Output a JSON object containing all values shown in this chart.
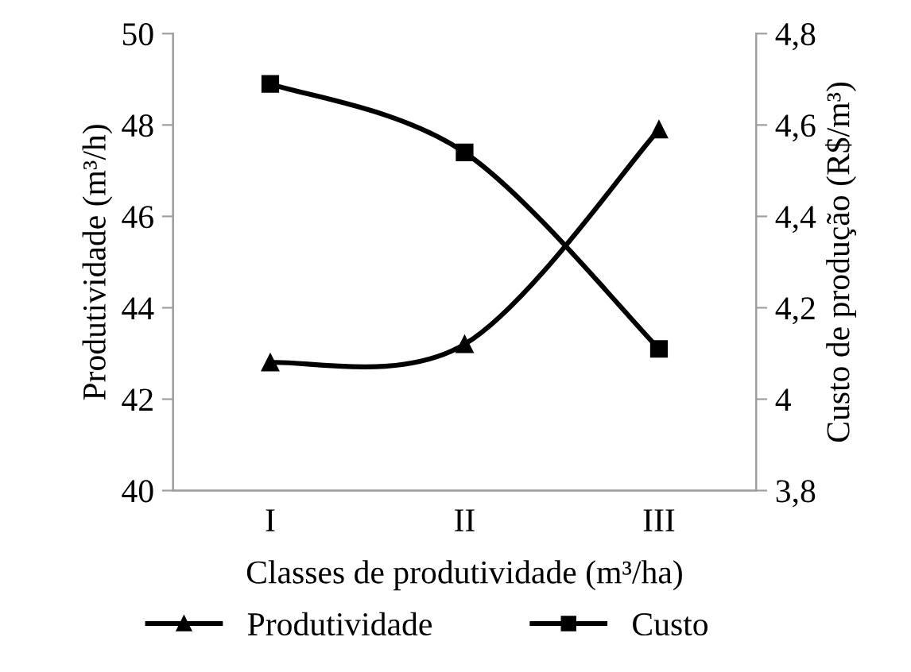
{
  "chart_data": {
    "type": "line",
    "xlabel": "Classes de produtividade (m³/ha)",
    "ylabel": "Produtividade (m³/h)",
    "y2label": "Custo de produção (R$/m³)",
    "categories": [
      "I",
      "II",
      "III"
    ],
    "series": [
      {
        "name": "Produtividade",
        "color": "#000000",
        "values": [
          42.8,
          43.2,
          47.9
        ],
        "marker": "triangle"
      },
      {
        "name": "Custo",
        "color": "#000000",
        "values": [
          4.69,
          4.54,
          4.11
        ],
        "marker": "square",
        "axis": "y2"
      }
    ],
    "ylim": [
      40,
      50
    ],
    "yticks": [
      40,
      42,
      44,
      46,
      48,
      50
    ],
    "y2lim": [
      3.8,
      4.8
    ],
    "y2ticks": [
      {
        "value": 3.8,
        "label": "3,8"
      },
      4,
      {
        "value": 4.2,
        "label": "4,2"
      },
      {
        "value": 4.4,
        "label": "4,4"
      },
      {
        "value": 4.6,
        "label": "4,6"
      },
      {
        "value": 4.8,
        "label": "4,8"
      }
    ],
    "grid": false,
    "legend": "bottom",
    "line_style": "solid"
  }
}
